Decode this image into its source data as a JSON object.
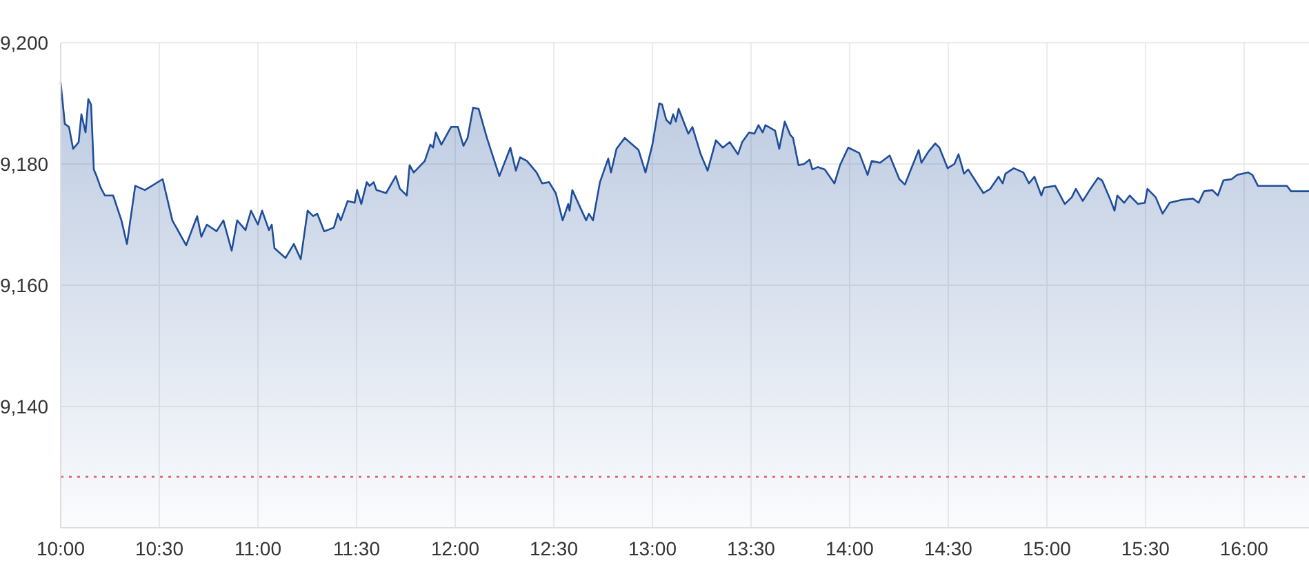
{
  "chart_data": {
    "type": "area",
    "xlim": [
      10,
      16.329
    ],
    "ylim": [
      9120,
      9200
    ],
    "xticks": [
      {
        "value": 10,
        "label": "10:00"
      },
      {
        "value": 10.5,
        "label": "10:30"
      },
      {
        "value": 11,
        "label": "11:00"
      },
      {
        "value": 11.5,
        "label": "11:30"
      },
      {
        "value": 12,
        "label": "12:00"
      },
      {
        "value": 12.5,
        "label": "12:30"
      },
      {
        "value": 13,
        "label": "13:00"
      },
      {
        "value": 13.5,
        "label": "13:30"
      },
      {
        "value": 14,
        "label": "14:00"
      },
      {
        "value": 14.5,
        "label": "14:30"
      },
      {
        "value": 15,
        "label": "15:00"
      },
      {
        "value": 15.5,
        "label": "15:30"
      },
      {
        "value": 16,
        "label": "16:00"
      }
    ],
    "yticks": [
      {
        "value": 9140,
        "label": "9,140"
      },
      {
        "value": 9160,
        "label": "9,160"
      },
      {
        "value": 9180,
        "label": "9,180"
      },
      {
        "value": 9200,
        "label": "9,200"
      }
    ],
    "grid": true,
    "ref_lines": [
      {
        "axis": "y",
        "value": 9128.4,
        "color": "#e06666",
        "line_style": "dotted"
      }
    ],
    "series": [
      {
        "color": "#1f4e99",
        "x": [
          10.0,
          10.021,
          10.042,
          10.063,
          10.091,
          10.105,
          10.126,
          10.14,
          10.154,
          10.168,
          10.182,
          10.203,
          10.224,
          10.266,
          10.308,
          10.336,
          10.378,
          10.427,
          10.517,
          10.566,
          10.636,
          10.692,
          10.713,
          10.741,
          10.79,
          10.825,
          10.867,
          10.895,
          10.937,
          10.965,
          11.0,
          11.021,
          11.056,
          11.07,
          11.084,
          11.14,
          11.182,
          11.217,
          11.252,
          11.28,
          11.301,
          11.336,
          11.385,
          11.406,
          11.42,
          11.455,
          11.49,
          11.503,
          11.524,
          11.552,
          11.566,
          11.587,
          11.601,
          11.65,
          11.699,
          11.72,
          11.755,
          11.769,
          11.79,
          11.846,
          11.874,
          11.888,
          11.902,
          11.93,
          11.979,
          12.014,
          12.042,
          12.063,
          12.091,
          12.119,
          12.161,
          12.224,
          12.28,
          12.308,
          12.329,
          12.364,
          12.413,
          12.441,
          12.476,
          12.51,
          12.545,
          12.573,
          12.58,
          12.594,
          12.664,
          12.678,
          12.699,
          12.734,
          12.776,
          12.79,
          12.818,
          12.86,
          12.93,
          12.965,
          13.0,
          13.035,
          13.049,
          13.07,
          13.091,
          13.105,
          13.119,
          13.133,
          13.182,
          13.203,
          13.245,
          13.28,
          13.322,
          13.357,
          13.392,
          13.434,
          13.455,
          13.49,
          13.517,
          13.538,
          13.559,
          13.573,
          13.622,
          13.643,
          13.671,
          13.699,
          13.713,
          13.741,
          13.769,
          13.797,
          13.811,
          13.839,
          13.874,
          13.923,
          13.951,
          13.993,
          14.049,
          14.091,
          14.112,
          14.154,
          14.203,
          14.252,
          14.28,
          14.35,
          14.364,
          14.399,
          14.434,
          14.455,
          14.497,
          14.531,
          14.552,
          14.58,
          14.601,
          14.678,
          14.713,
          14.755,
          14.776,
          14.79,
          14.832,
          14.881,
          14.909,
          14.937,
          14.972,
          14.986,
          15.042,
          15.091,
          15.126,
          15.147,
          15.182,
          15.217,
          15.259,
          15.28,
          15.322,
          15.343,
          15.357,
          15.392,
          15.42,
          15.462,
          15.497,
          15.51,
          15.552,
          15.587,
          15.622,
          15.685,
          15.741,
          15.769,
          15.797,
          15.839,
          15.867,
          15.895,
          15.937,
          15.965,
          16.021,
          16.042,
          16.07,
          16.217,
          16.238,
          16.329
        ],
        "values": [
          9193.4,
          9186.6,
          9186.1,
          9182.5,
          9183.6,
          9188.2,
          9185.2,
          9190.7,
          9189.8,
          9179.1,
          9178.0,
          9176.1,
          9174.8,
          9174.8,
          9170.7,
          9166.8,
          9176.4,
          9175.7,
          9177.5,
          9170.7,
          9166.6,
          9171.4,
          9168.0,
          9170.0,
          9168.9,
          9170.7,
          9165.7,
          9170.7,
          9169.1,
          9172.3,
          9170.0,
          9172.3,
          9169.1,
          9170.0,
          9166.1,
          9164.5,
          9166.8,
          9164.3,
          9172.3,
          9171.4,
          9171.8,
          9168.9,
          9169.5,
          9171.8,
          9170.7,
          9173.9,
          9173.6,
          9175.7,
          9173.4,
          9177.0,
          9176.4,
          9177.0,
          9175.7,
          9175.2,
          9178.0,
          9175.9,
          9174.8,
          9179.8,
          9178.6,
          9180.5,
          9183.2,
          9182.7,
          9185.2,
          9183.2,
          9186.1,
          9186.1,
          9183.0,
          9184.3,
          9189.3,
          9189.1,
          9184.3,
          9178.0,
          9182.7,
          9178.9,
          9181.1,
          9180.5,
          9178.6,
          9176.8,
          9177.0,
          9175.2,
          9170.7,
          9173.4,
          9172.3,
          9175.7,
          9170.7,
          9171.8,
          9170.7,
          9177.0,
          9180.9,
          9178.6,
          9182.5,
          9184.3,
          9182.3,
          9178.6,
          9183.2,
          9190.0,
          9189.8,
          9187.3,
          9186.6,
          9188.2,
          9187.0,
          9189.1,
          9185.0,
          9186.1,
          9181.6,
          9178.9,
          9183.9,
          9182.7,
          9183.6,
          9181.6,
          9183.6,
          9185.2,
          9185.0,
          9186.4,
          9185.2,
          9186.4,
          9185.5,
          9182.5,
          9187.0,
          9184.8,
          9184.3,
          9179.8,
          9180.0,
          9180.7,
          9179.1,
          9179.5,
          9179.1,
          9176.8,
          9179.8,
          9182.7,
          9181.8,
          9178.2,
          9180.5,
          9180.2,
          9181.4,
          9177.5,
          9176.6,
          9182.3,
          9180.2,
          9182.0,
          9183.4,
          9182.7,
          9179.3,
          9180.0,
          9181.6,
          9178.4,
          9179.1,
          9175.2,
          9175.9,
          9177.9,
          9176.8,
          9178.4,
          9179.3,
          9178.6,
          9176.8,
          9177.9,
          9174.8,
          9176.1,
          9176.4,
          9173.4,
          9174.5,
          9175.9,
          9173.9,
          9175.7,
          9177.7,
          9177.3,
          9174.1,
          9172.3,
          9174.8,
          9173.6,
          9174.8,
          9173.4,
          9173.6,
          9175.9,
          9174.5,
          9171.8,
          9173.6,
          9174.1,
          9174.3,
          9173.6,
          9175.5,
          9175.7,
          9174.8,
          9177.3,
          9177.5,
          9178.2,
          9178.6,
          9178.2,
          9176.4,
          9176.4,
          9175.5,
          9175.5
        ]
      }
    ]
  }
}
